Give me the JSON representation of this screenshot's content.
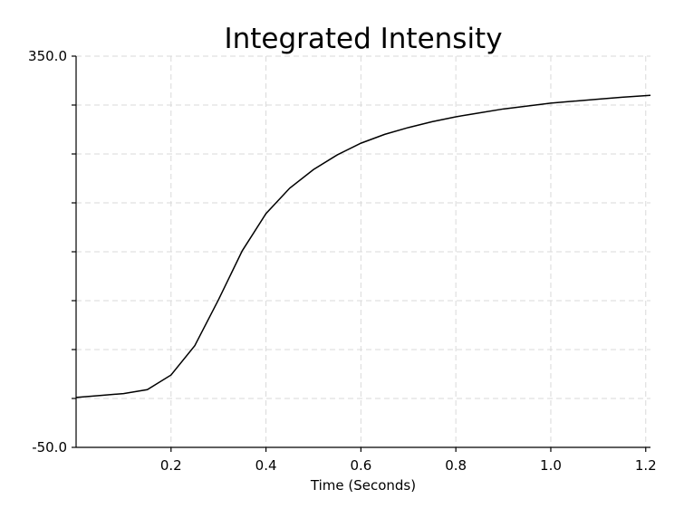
{
  "chart_data": {
    "type": "line",
    "title": "Integrated Intensity",
    "xlabel": "Time (Seconds)",
    "ylabel": "",
    "xlim": [
      0.0,
      1.21
    ],
    "ylim": [
      -50.0,
      350.0
    ],
    "x_ticks": [
      0.2,
      0.4,
      0.6,
      0.8,
      1.0,
      1.2
    ],
    "x_tick_labels": [
      "0.2",
      "0.4",
      "0.6",
      "0.8",
      "1.0",
      "1.2"
    ],
    "y_ticks": [
      -50,
      0,
      50,
      100,
      150,
      200,
      250,
      300,
      350
    ],
    "y_tick_labels": [
      "-50.0",
      "",
      "",
      "",
      "",
      "",
      "",
      "",
      "350.0"
    ],
    "grid": true,
    "series": [
      {
        "x": [
          0.0,
          0.05,
          0.1,
          0.15,
          0.2,
          0.25,
          0.3,
          0.35,
          0.4,
          0.45,
          0.5,
          0.55,
          0.6,
          0.65,
          0.7,
          0.75,
          0.8,
          0.85,
          0.9,
          0.95,
          1.0,
          1.05,
          1.1,
          1.15,
          1.21
        ],
        "y": [
          1,
          3,
          5,
          9,
          24,
          54,
          101,
          151,
          189,
          215,
          234,
          249,
          261,
          270,
          277,
          283,
          288,
          292,
          296,
          299,
          302,
          304,
          306,
          308,
          310
        ]
      }
    ]
  }
}
